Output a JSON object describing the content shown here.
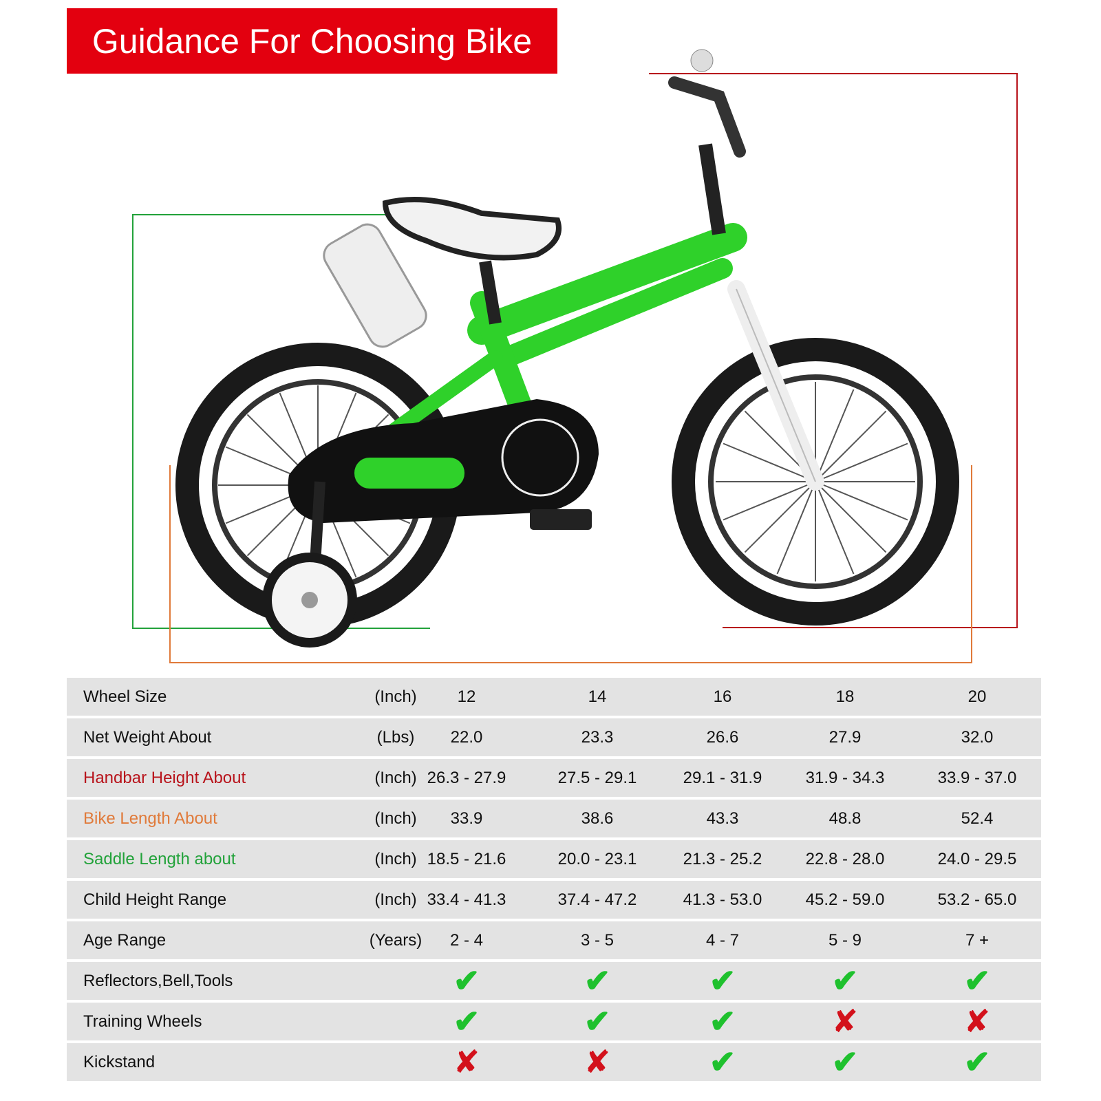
{
  "title": "Guidance For Choosing Bike",
  "colors": {
    "banner": "#e3000f",
    "handlebar": "#b8141c",
    "bike_length": "#e07a3a",
    "saddle": "#22a23a",
    "check": "#1fc12e",
    "cross": "#d3111b",
    "row_bg": "#e3e3e3"
  },
  "table": {
    "rows": [
      {
        "label": "Wheel Size",
        "unit": "(Inch)",
        "values": [
          "12",
          "14",
          "16",
          "18",
          "20"
        ]
      },
      {
        "label": "Net Weight About",
        "unit": "(Lbs)",
        "values": [
          "22.0",
          "23.3",
          "26.6",
          "27.9",
          "32.0"
        ]
      },
      {
        "label": "Handbar Height About",
        "unit": "(Inch)",
        "values": [
          "26.3 - 27.9",
          "27.5 - 29.1",
          "29.1 - 31.9",
          "31.9 - 34.3",
          "33.9 - 37.0"
        ]
      },
      {
        "label": "Bike Length About",
        "unit": "(Inch)",
        "values": [
          "33.9",
          "38.6",
          "43.3",
          "48.8",
          "52.4"
        ]
      },
      {
        "label": "Saddle Length about",
        "unit": "(Inch)",
        "values": [
          "18.5 - 21.6",
          "20.0 - 23.1",
          "21.3 - 25.2",
          "22.8 - 28.0",
          "24.0 - 29.5"
        ]
      },
      {
        "label": "Child Height Range",
        "unit": "(Inch)",
        "values": [
          "33.4 - 41.3",
          "37.4 - 47.2",
          "41.3 - 53.0",
          "45.2 - 59.0",
          "53.2 - 65.0"
        ]
      },
      {
        "label": "Age Range",
        "unit": "(Years)",
        "values": [
          "2 - 4",
          "3 - 5",
          "4 - 7",
          "5 - 9",
          "7 +"
        ]
      }
    ],
    "features": [
      {
        "label": "Reflectors,Bell,Tools",
        "included": [
          true,
          true,
          true,
          true,
          true
        ]
      },
      {
        "label": "Training Wheels",
        "included": [
          true,
          true,
          true,
          false,
          false
        ]
      },
      {
        "label": "Kickstand",
        "included": [
          false,
          false,
          true,
          true,
          true
        ]
      }
    ],
    "check_glyph": "✔",
    "cross_glyph": "✘"
  }
}
